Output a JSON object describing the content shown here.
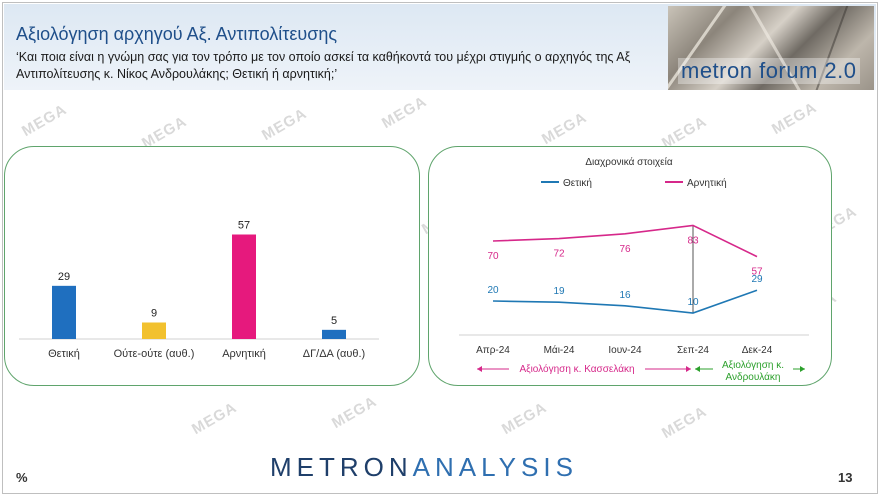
{
  "header": {
    "title": "Αξιολόγηση αρχηγού Αξ. Αντιπολίτευσης",
    "subtitle": "‘Και ποια είναι η γνώμη σας για τον τρόπο με τον οποίο ασκεί τα καθήκοντά του μέχρι στιγμής ο αρχηγός της Αξ Αντιπολίτευσης κ. Νίκος Ανδρουλάκης; Θετική ή αρνητική;’",
    "logo_text": "metron forum 2.0"
  },
  "watermark_text": "MEGA",
  "footer": {
    "brand_part1": "METRON",
    "brand_part2": "ANALYSIS",
    "percent_sign": "%",
    "page_number": "13"
  },
  "chart_data": [
    {
      "type": "bar",
      "categories": [
        "Θετική",
        "Ούτε-ούτε (αυθ.)",
        "Αρνητική",
        "ΔΓ/ΔΑ (αυθ.)"
      ],
      "values": [
        29,
        9,
        57,
        5
      ],
      "colors": [
        "#1f6fbf",
        "#f2c12e",
        "#e6197d",
        "#1f6fbf"
      ],
      "title": "",
      "xlabel": "",
      "ylabel": "",
      "ylim": [
        0,
        60
      ]
    },
    {
      "type": "line",
      "title": "Διαχρονικά στοιχεία",
      "categories": [
        "Απρ-24",
        "Μάι-24",
        "Ιουν-24",
        "Σεπ-24",
        "Δεκ-24"
      ],
      "series": [
        {
          "name": "Θετική",
          "color": "#1f78b4",
          "values": [
            20,
            19,
            16,
            10,
            29
          ]
        },
        {
          "name": "Αρνητική",
          "color": "#d6288a",
          "values": [
            70,
            72,
            76,
            83,
            57
          ]
        }
      ],
      "legend": "top",
      "annotations": [
        {
          "text": "Αξιολόγηση κ. Κασσελάκη",
          "color": "#d6288a"
        },
        {
          "text": "Αξιολόγηση κ.",
          "text2": "Ανδρουλάκη",
          "color": "#2ca02c"
        }
      ],
      "ylim": [
        0,
        100
      ]
    }
  ]
}
